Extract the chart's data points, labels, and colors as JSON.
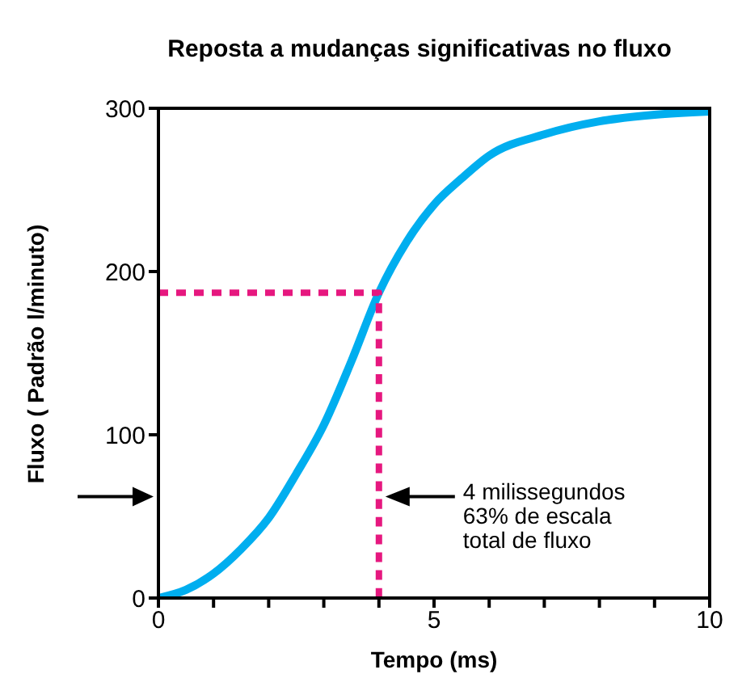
{
  "chart_data": {
    "type": "line",
    "title": "Reposta a mudanças significativas no fluxo",
    "xlabel": "Tempo (ms)",
    "ylabel": "Fluxo ( Padrão l/minuto)",
    "xlim": [
      0,
      10
    ],
    "ylim": [
      0,
      300
    ],
    "xticks": [
      0,
      {
        "value": 1,
        "label": null
      },
      {
        "value": 2,
        "label": null
      },
      {
        "value": 3,
        "label": null
      },
      {
        "value": 4,
        "label": null
      },
      5,
      {
        "value": 6,
        "label": null
      },
      {
        "value": 7,
        "label": null
      },
      {
        "value": 8,
        "label": null
      },
      {
        "value": 9,
        "label": null
      },
      10
    ],
    "yticks": [
      0,
      100,
      200,
      300
    ],
    "marker": "none",
    "annotations": [
      "4 milissegundos\n63% de escala\ntotal de fluxo"
    ],
    "series": [
      {
        "color": "#00aeef",
        "line_style": "solid",
        "x": [
          0,
          0.5,
          1,
          1.5,
          2,
          2.5,
          3,
          3.5,
          4,
          4.5,
          5,
          5.5,
          6,
          7,
          8,
          9,
          10
        ],
        "values": [
          0,
          5,
          15,
          30,
          49,
          76,
          106,
          145,
          187,
          218,
          241,
          257,
          271,
          284,
          292,
          296,
          298
        ]
      },
      {
        "color": "#e6187f",
        "line_style": "dashed",
        "x": [
          0,
          4,
          4
        ],
        "values": [
          187,
          187,
          0
        ]
      }
    ]
  }
}
